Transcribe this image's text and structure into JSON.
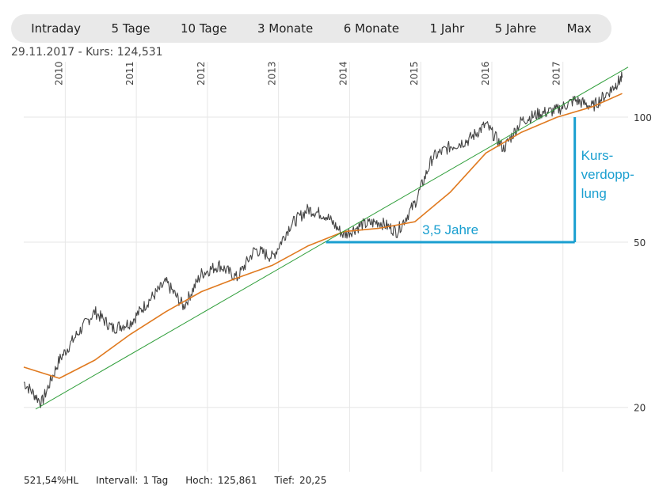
{
  "tabs": [
    {
      "label": "Intraday"
    },
    {
      "label": "5 Tage"
    },
    {
      "label": "10 Tage"
    },
    {
      "label": "3 Monate"
    },
    {
      "label": "6 Monate"
    },
    {
      "label": "1 Jahr"
    },
    {
      "label": "5 Jahre"
    },
    {
      "label": "Max"
    }
  ],
  "quote": {
    "date": "29.11.2017",
    "text": "- Kurs: 124,531"
  },
  "footer": {
    "change": "521,54%HL",
    "interval_label": "Intervall:",
    "interval_value": "1 Tag",
    "high_label": "Hoch:",
    "high_value": "125,861",
    "low_label": "Tief:",
    "low_value": "20,25"
  },
  "colors": {
    "price": "#444444",
    "average": "#e07a20",
    "trend": "#2f9e3a",
    "annotation": "#1a9fd0",
    "grid": "#e6e6e6"
  },
  "chart_data": {
    "type": "line",
    "y_scale": "log",
    "ylim": [
      14,
      136
    ],
    "x_range": [
      "2009-06",
      "2017-12"
    ],
    "yticks": [
      100,
      50,
      20
    ],
    "ytick_labels": [
      "100",
      "50",
      "20"
    ],
    "year_ticks": [
      "2010",
      "2011",
      "2012",
      "2013",
      "2014",
      "2015",
      "2016",
      "2017"
    ],
    "series": [
      {
        "key": "price",
        "x": [
          "2009-06",
          "2009-09",
          "2009-12",
          "2010-03",
          "2010-06",
          "2010-09",
          "2010-12",
          "2011-03",
          "2011-06",
          "2011-09",
          "2011-12",
          "2012-03",
          "2012-06",
          "2012-09",
          "2012-12",
          "2013-03",
          "2013-06",
          "2013-09",
          "2013-12",
          "2014-03",
          "2014-06",
          "2014-09",
          "2014-12",
          "2015-03",
          "2015-06",
          "2015-09",
          "2015-12",
          "2016-03",
          "2016-06",
          "2016-09",
          "2016-12",
          "2017-03",
          "2017-06",
          "2017-09",
          "2017-11"
        ],
        "y": [
          23,
          20.5,
          26,
          30,
          34,
          31,
          32,
          36,
          40,
          35,
          42,
          44,
          41,
          48,
          46,
          55,
          60,
          58,
          52,
          55,
          56,
          53,
          62,
          80,
          85,
          88,
          96,
          84,
          98,
          102,
          104,
          110,
          106,
          116,
          124.5
        ]
      },
      {
        "key": "average",
        "x": [
          "2009-06",
          "2009-12",
          "2010-06",
          "2010-12",
          "2011-06",
          "2011-12",
          "2012-06",
          "2012-12",
          "2013-06",
          "2013-12",
          "2014-06",
          "2014-12",
          "2015-06",
          "2015-12",
          "2016-06",
          "2016-12",
          "2017-06",
          "2017-11"
        ],
        "y": [
          25,
          23.5,
          26,
          30,
          34,
          38,
          41,
          44,
          49,
          53,
          54,
          56,
          66,
          82,
          92,
          100,
          106,
          114
        ]
      },
      {
        "key": "trend",
        "x": [
          "2009-08",
          "2017-12"
        ],
        "y": [
          19.8,
          132
        ]
      }
    ],
    "annotations": {
      "horizontal_text": "3,5 Jahre",
      "vertical_text": [
        "Kurs-",
        "verdopp-",
        "lung"
      ],
      "segment": {
        "x_start": "2013-09",
        "x_end": "2017-03",
        "y_base": 50,
        "y_top": 100
      }
    }
  }
}
